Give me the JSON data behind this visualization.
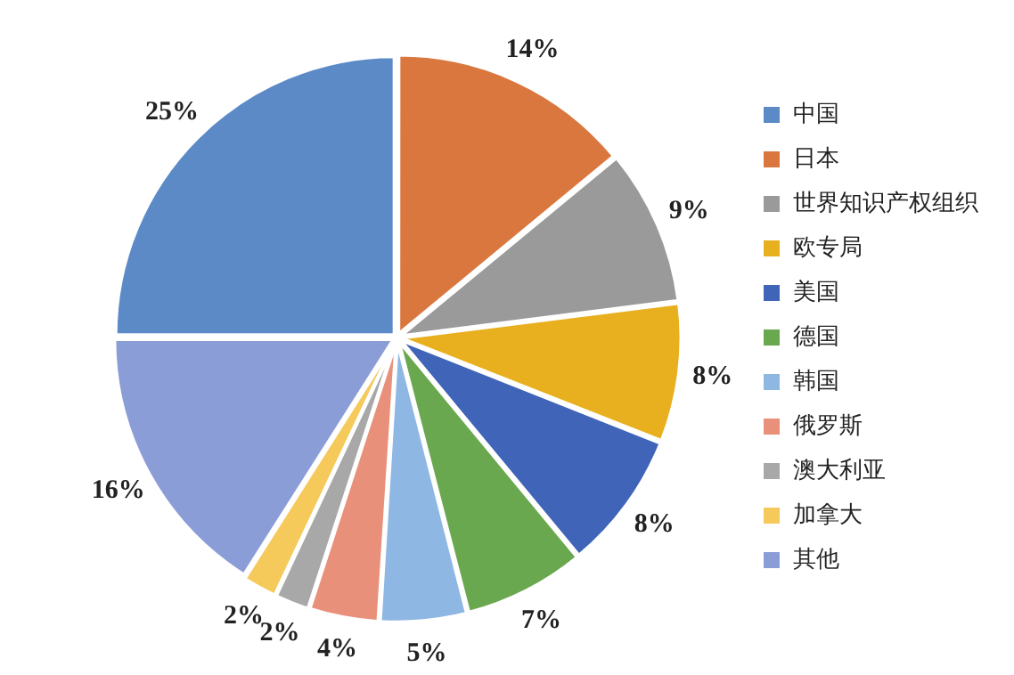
{
  "chart_data": {
    "type": "pie",
    "categories": [
      "中国",
      "日本",
      "世界知识产权组织",
      "欧专局",
      "美国",
      "德国",
      "韩国",
      "俄罗斯",
      "澳大利亚",
      "加拿大",
      "其他"
    ],
    "values": [
      25,
      14,
      9,
      8,
      8,
      7,
      5,
      4,
      2,
      2,
      16
    ],
    "value_labels": [
      "25%",
      "14%",
      "9%",
      "8%",
      "8%",
      "7%",
      "5%",
      "4%",
      "2%",
      "2%",
      "16%"
    ],
    "colors": [
      "#5b8ac6",
      "#d9773f",
      "#9a9a9a",
      "#e8b01e",
      "#3f64b8",
      "#6aa84f",
      "#8fb7e4",
      "#e8907a",
      "#a8a8a8",
      "#f5c95a",
      "#8b9dd6"
    ],
    "legend": "right"
  }
}
